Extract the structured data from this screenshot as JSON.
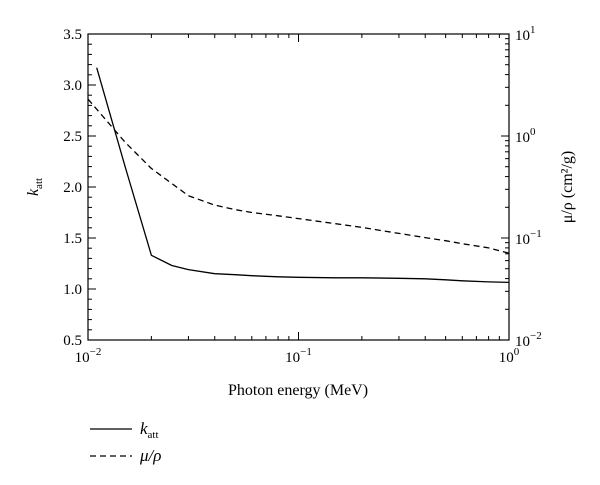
{
  "chart_data": {
    "type": "line",
    "x_scale": "log",
    "xlim": [
      0.01,
      1
    ],
    "xlabel": "Photon energy (MeV)",
    "x_ticks": [
      {
        "value": 0.01,
        "base": "10",
        "exp": "−2"
      },
      {
        "value": 0.1,
        "base": "10",
        "exp": "−1"
      },
      {
        "value": 1,
        "base": "10",
        "exp": "0"
      }
    ],
    "y_left": {
      "label_main": "k",
      "label_sub": "att",
      "scale": "linear",
      "lim": [
        0.5,
        3.5
      ],
      "ticks": [
        "0.5",
        "1.0",
        "1.5",
        "2.0",
        "2.5",
        "3.0",
        "3.5"
      ]
    },
    "y_right": {
      "label": "μ/ρ (cm²/g)",
      "scale": "log",
      "lim": [
        0.01,
        10
      ],
      "ticks": [
        {
          "value": 0.01,
          "base": "10",
          "exp": "−2"
        },
        {
          "value": 0.1,
          "base": "10",
          "exp": "−1"
        },
        {
          "value": 1,
          "base": "10",
          "exp": "0"
        },
        {
          "value": 10,
          "base": "10",
          "exp": "1"
        }
      ]
    },
    "grid": false,
    "legend_position": "bottom-left",
    "series": [
      {
        "name": "k_att",
        "legend_main": "k",
        "legend_sub": "att",
        "axis": "left",
        "style": "solid",
        "color": "#000000",
        "x": [
          0.011,
          0.015,
          0.02,
          0.025,
          0.03,
          0.04,
          0.05,
          0.06,
          0.08,
          0.1,
          0.15,
          0.2,
          0.3,
          0.4,
          0.5,
          0.6,
          0.8,
          1.0
        ],
        "y": [
          3.17,
          2.2,
          1.33,
          1.23,
          1.19,
          1.15,
          1.14,
          1.13,
          1.12,
          1.115,
          1.11,
          1.11,
          1.105,
          1.1,
          1.09,
          1.08,
          1.07,
          1.065
        ]
      },
      {
        "name": "μ/ρ",
        "axis": "right",
        "style": "dashed",
        "color": "#000000",
        "x": [
          0.01,
          0.015,
          0.02,
          0.03,
          0.04,
          0.05,
          0.06,
          0.08,
          0.1,
          0.15,
          0.2,
          0.3,
          0.4,
          0.5,
          0.6,
          0.8,
          1.0
        ],
        "y": [
          2.3,
          0.87,
          0.48,
          0.26,
          0.21,
          0.19,
          0.178,
          0.165,
          0.155,
          0.138,
          0.127,
          0.111,
          0.101,
          0.094,
          0.088,
          0.08,
          0.071
        ]
      }
    ]
  }
}
